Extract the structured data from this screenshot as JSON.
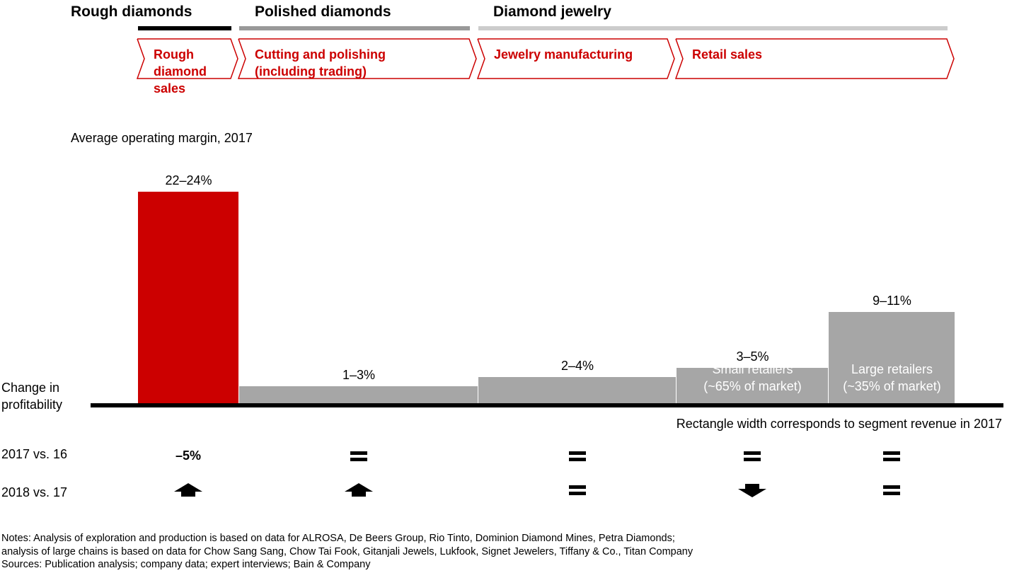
{
  "header": {
    "stages": [
      {
        "title": "Rough diamonds",
        "bar_color": "#000000"
      },
      {
        "title": "Polished diamonds",
        "bar_color": "#999999"
      },
      {
        "title": "Diamond jewelry",
        "bar_color": "#cccccc"
      }
    ],
    "steps": [
      {
        "label": "Rough\ndiamond\nsales"
      },
      {
        "label": "Cutting and polishing\n(including trading)"
      },
      {
        "label": "Jewelry manufacturing"
      },
      {
        "label": "Retail sales"
      }
    ],
    "step_color": "#cc0000"
  },
  "chart_data": {
    "type": "bar",
    "subtitle": "Average operating margin, 2017",
    "width_note": "Rectangle width corresponds to segment revenue in 2017",
    "categories": [
      "Rough diamond sales",
      "Cutting and polishing (including trading)",
      "Jewelry manufacturing",
      "Small retailers (~65% of market)",
      "Large retailers (~35% of market)"
    ],
    "bars": [
      {
        "label": "22–24%",
        "value": 23,
        "inner_label": "",
        "color": "#cc0000"
      },
      {
        "label": "1–3%",
        "value": 2,
        "inner_label": "",
        "color": "#a6a6a6"
      },
      {
        "label": "2–4%",
        "value": 3,
        "inner_label": "",
        "color": "#a6a6a6"
      },
      {
        "label": "3–5%",
        "value": 4,
        "inner_label": "Small retailers\n(~65% of market)",
        "color": "#a6a6a6"
      },
      {
        "label": "9–11%",
        "value": 10,
        "inner_label": "Large retailers\n(~35% of market)",
        "color": "#a6a6a6"
      }
    ],
    "market_share": {
      "small_retailers": 0.65,
      "large_retailers": 0.35
    },
    "ylim": [
      0,
      23
    ]
  },
  "profitability": {
    "title": "Change in\nprofitability",
    "rows": [
      {
        "label": "2017 vs. 16",
        "markers": [
          {
            "type": "text",
            "text": "–5%"
          },
          {
            "type": "equal"
          },
          {
            "type": "equal"
          },
          {
            "type": "equal"
          },
          {
            "type": "equal"
          }
        ]
      },
      {
        "label": "2018 vs. 17",
        "markers": [
          {
            "type": "up"
          },
          {
            "type": "up"
          },
          {
            "type": "equal"
          },
          {
            "type": "down"
          },
          {
            "type": "equal"
          }
        ]
      }
    ]
  },
  "notes": [
    "Notes: Analysis of exploration and production is based on data for ALROSA, De Beers Group, Rio Tinto, Dominion Diamond Mines, Petra Diamonds;",
    "analysis of large chains is based on data for Chow Sang Sang, Chow Tai Fook, Gitanjali Jewels, Lukfook, Signet Jewelers, Tiffany & Co., Titan Company",
    "Sources: Publication analysis; company data; expert interviews; Bain & Company"
  ]
}
